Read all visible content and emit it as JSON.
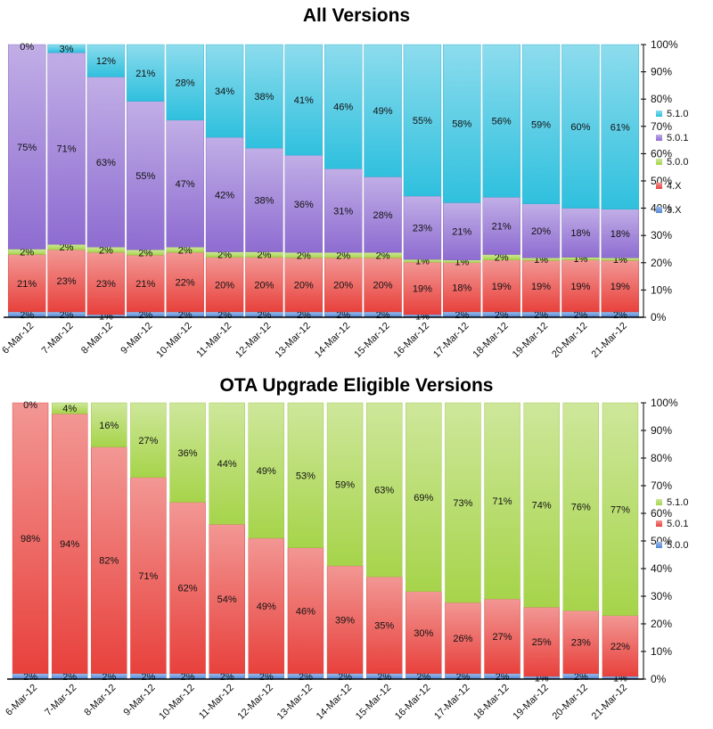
{
  "chart_data": [
    {
      "type": "bar",
      "stacked": "percent",
      "title": "All Versions",
      "categories": [
        "6-Mar-12",
        "7-Mar-12",
        "8-Mar-12",
        "9-Mar-12",
        "10-Mar-12",
        "11-Mar-12",
        "12-Mar-12",
        "13-Mar-12",
        "14-Mar-12",
        "15-Mar-12",
        "16-Mar-12",
        "17-Mar-12",
        "18-Mar-12",
        "19-Mar-12",
        "20-Mar-12",
        "21-Mar-12"
      ],
      "series": [
        {
          "name": "3.X",
          "color": "#4f86d6",
          "values": [
            2,
            2,
            1,
            2,
            2,
            2,
            2,
            2,
            2,
            2,
            1,
            2,
            2,
            2,
            2,
            2
          ]
        },
        {
          "name": "4.X",
          "color": "#e8413c",
          "values": [
            21,
            23,
            23,
            21,
            22,
            20,
            20,
            20,
            20,
            20,
            19,
            18,
            19,
            19,
            19,
            19
          ]
        },
        {
          "name": "5.0.0",
          "color": "#a6d44a",
          "values": [
            2,
            2,
            2,
            2,
            2,
            2,
            2,
            2,
            2,
            2,
            1,
            1,
            2,
            1,
            1,
            1
          ]
        },
        {
          "name": "5.0.1",
          "color": "#8e6cd1",
          "values": [
            75,
            71,
            63,
            55,
            47,
            42,
            38,
            36,
            31,
            28,
            23,
            21,
            21,
            20,
            18,
            18
          ]
        },
        {
          "name": "5.1.0",
          "color": "#2fc0de",
          "values": [
            0,
            3,
            12,
            21,
            28,
            34,
            38,
            41,
            46,
            49,
            55,
            58,
            56,
            59,
            60,
            61
          ]
        }
      ],
      "ylim": [
        0,
        100
      ],
      "yticks": [
        "0%",
        "10%",
        "20%",
        "30%",
        "40%",
        "50%",
        "60%",
        "70%",
        "80%",
        "90%",
        "100%"
      ],
      "legend_position": "right",
      "grid": false
    },
    {
      "type": "bar",
      "stacked": "percent",
      "title": "OTA Upgrade Eligible Versions",
      "categories": [
        "6-Mar-12",
        "7-Mar-12",
        "8-Mar-12",
        "9-Mar-12",
        "10-Mar-12",
        "11-Mar-12",
        "12-Mar-12",
        "13-Mar-12",
        "14-Mar-12",
        "15-Mar-12",
        "16-Mar-12",
        "17-Mar-12",
        "18-Mar-12",
        "19-Mar-12",
        "20-Mar-12",
        "21-Mar-12"
      ],
      "series": [
        {
          "name": "5.0.0",
          "color": "#4f86d6",
          "values": [
            2,
            2,
            2,
            2,
            2,
            2,
            2,
            2,
            2,
            2,
            2,
            2,
            2,
            1,
            2,
            1
          ]
        },
        {
          "name": "5.0.1",
          "color": "#e8413c",
          "values": [
            98,
            94,
            82,
            71,
            62,
            54,
            49,
            46,
            39,
            35,
            30,
            26,
            27,
            25,
            23,
            22
          ]
        },
        {
          "name": "5.1.0",
          "color": "#a6d44a",
          "values": [
            0,
            4,
            16,
            27,
            36,
            44,
            49,
            53,
            59,
            63,
            69,
            73,
            71,
            74,
            76,
            77
          ]
        }
      ],
      "ylim": [
        0,
        100
      ],
      "yticks": [
        "0%",
        "10%",
        "20%",
        "30%",
        "40%",
        "50%",
        "60%",
        "70%",
        "80%",
        "90%",
        "100%"
      ],
      "legend_position": "right",
      "grid": false
    }
  ]
}
